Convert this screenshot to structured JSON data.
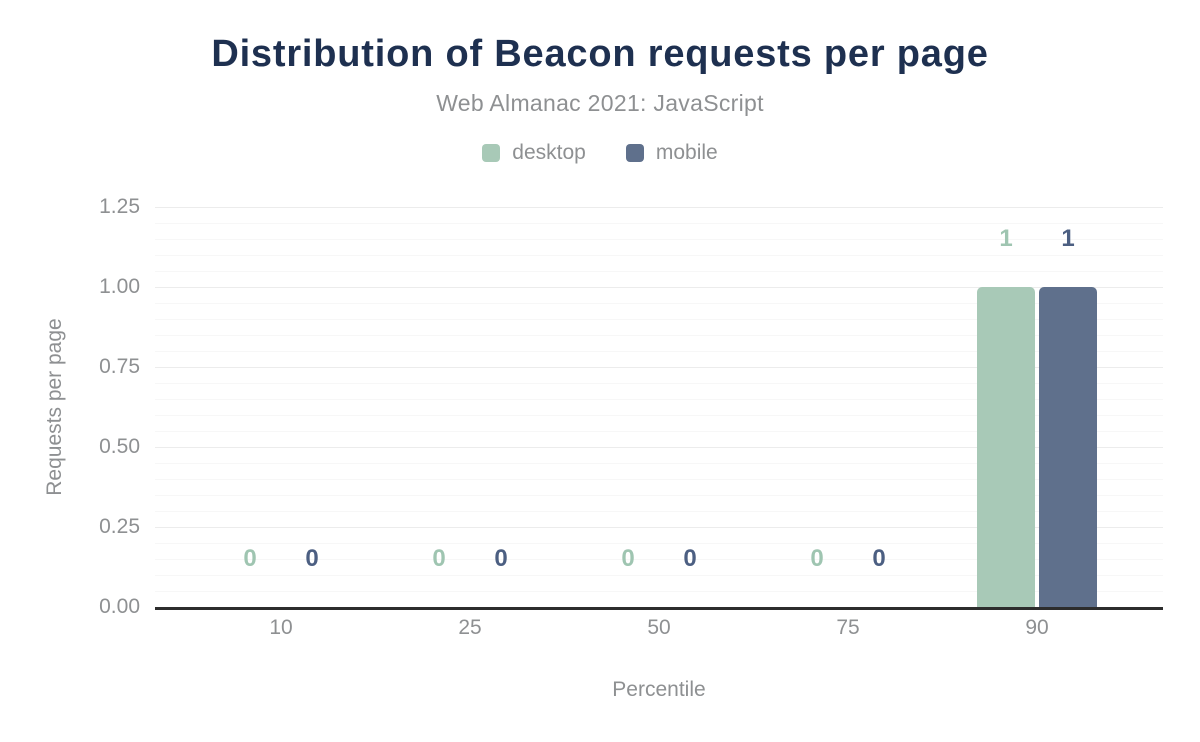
{
  "chart_data": {
    "type": "bar",
    "title": "Distribution of Beacon requests per page",
    "subtitle": "Web Almanac 2021: JavaScript",
    "categories": [
      "10",
      "25",
      "50",
      "75",
      "90"
    ],
    "series": [
      {
        "name": "desktop",
        "color": "#a8c9b7",
        "label_color": "#9fc5b1",
        "values": [
          0,
          0,
          0,
          0,
          1
        ]
      },
      {
        "name": "mobile",
        "color": "#5f708c",
        "label_color": "#4c5f82",
        "values": [
          0,
          0,
          0,
          0,
          1
        ]
      }
    ],
    "xlabel": "Percentile",
    "ylabel": "Requests per page",
    "ylim": [
      0,
      1.25
    ],
    "yticks": [
      "0.00",
      "0.25",
      "0.50",
      "0.75",
      "1.00",
      "1.25"
    ],
    "grid": {
      "minor_step": 0.05,
      "major_step": 0.25,
      "minor_color": "#f7f7f7",
      "major_color": "#ececec"
    },
    "legend_position": "top-center",
    "colors": {
      "title": "#1e3050",
      "axis_text": "#8e9092",
      "axis_line": "#2d2d2d",
      "background": "#ffffff"
    }
  }
}
